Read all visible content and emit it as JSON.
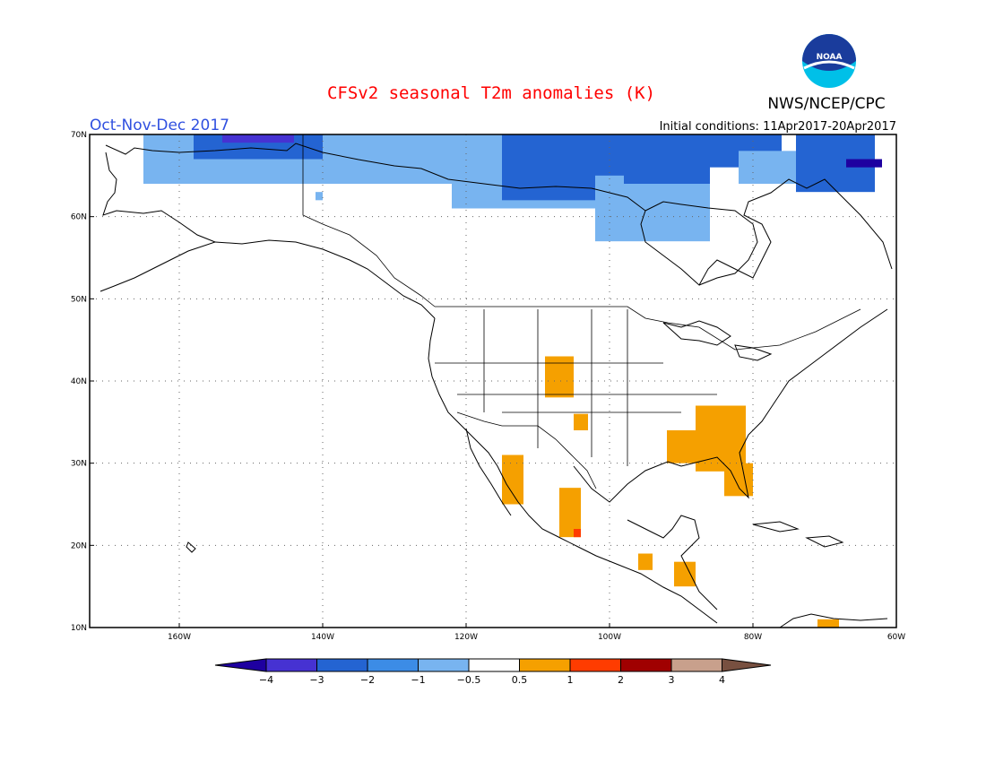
{
  "header": {
    "title": "CFSv2 seasonal T2m anomalies (K)",
    "season": "Oct-Nov-Dec 2017",
    "initial_conditions": "Initial conditions: 11Apr2017-20Apr2017",
    "agency": "NWS/NCEP/CPC",
    "logo_text": "NOAA"
  },
  "colors": {
    "title": "#ff0000",
    "season": "#3050e0",
    "text": "#000000"
  },
  "map": {
    "lon_min": -172.5,
    "lon_max": -60,
    "lat_min": 10,
    "lat_max": 70,
    "grid": "dotted",
    "lat_ticks": [
      {
        "value": 70,
        "label": "70N"
      },
      {
        "value": 60,
        "label": "60N"
      },
      {
        "value": 50,
        "label": "50N"
      },
      {
        "value": 40,
        "label": "40N"
      },
      {
        "value": 30,
        "label": "30N"
      },
      {
        "value": 20,
        "label": "20N"
      },
      {
        "value": 10,
        "label": "10N"
      }
    ],
    "lon_ticks": [
      {
        "value": -160,
        "label": "160W"
      },
      {
        "value": -140,
        "label": "140W"
      },
      {
        "value": -120,
        "label": "120W"
      },
      {
        "value": -100,
        "label": "100W"
      },
      {
        "value": -80,
        "label": "80W"
      },
      {
        "value": -60,
        "label": "60W"
      }
    ]
  },
  "colorbar": {
    "colors": [
      "#1e00a0",
      "#4632d2",
      "#2464d2",
      "#3c8ce6",
      "#78b4f0",
      "#ffffff",
      "#f5a000",
      "#ff3c00",
      "#a00000",
      "#c8a08c",
      "#785040"
    ],
    "labels": [
      "−4",
      "−3",
      "−2",
      "−1",
      "−0.5",
      "0.5",
      "1",
      "2",
      "3",
      "4"
    ]
  },
  "chart_data": {
    "type": "heatmap",
    "title": "CFSv2 seasonal T2m anomalies (K)",
    "regions": [
      {
        "lon": [
          -165,
          -96
        ],
        "lat": [
          64,
          70
        ],
        "anomaly": -1
      },
      {
        "lon": [
          -158,
          -140
        ],
        "lat": [
          67,
          70
        ],
        "anomaly": -2
      },
      {
        "lon": [
          -154,
          -144
        ],
        "lat": [
          69,
          70
        ],
        "anomaly": -3
      },
      {
        "lon": [
          -140,
          -122
        ],
        "lat": [
          67,
          70
        ],
        "anomaly": -1
      },
      {
        "lon": [
          -122,
          -96
        ],
        "lat": [
          61,
          70
        ],
        "anomaly": -1
      },
      {
        "lon": [
          -115,
          -94
        ],
        "lat": [
          62,
          70
        ],
        "anomaly": -2
      },
      {
        "lon": [
          -102,
          -86
        ],
        "lat": [
          57,
          65
        ],
        "anomaly": -1
      },
      {
        "lon": [
          -98,
          -86
        ],
        "lat": [
          64,
          70
        ],
        "anomaly": -2
      },
      {
        "lon": [
          -90,
          -76
        ],
        "lat": [
          66,
          70
        ],
        "anomaly": -2
      },
      {
        "lon": [
          -82,
          -74
        ],
        "lat": [
          64,
          68
        ],
        "anomaly": -1
      },
      {
        "lon": [
          -74,
          -63
        ],
        "lat": [
          63,
          70
        ],
        "anomaly": -2
      },
      {
        "lon": [
          -67,
          -62
        ],
        "lat": [
          66,
          67
        ],
        "anomaly": -4
      },
      {
        "lon": [
          -141,
          -140
        ],
        "lat": [
          62,
          63
        ],
        "anomaly": -1
      },
      {
        "lon": [
          -109,
          -105
        ],
        "lat": [
          38,
          43
        ],
        "anomaly": 0.5
      },
      {
        "lon": [
          -105,
          -103
        ],
        "lat": [
          34,
          36
        ],
        "anomaly": 0.5
      },
      {
        "lon": [
          -88,
          -81
        ],
        "lat": [
          29,
          37
        ],
        "anomaly": 0.5
      },
      {
        "lon": [
          -92,
          -88
        ],
        "lat": [
          30,
          34
        ],
        "anomaly": 0.5
      },
      {
        "lon": [
          -84,
          -80
        ],
        "lat": [
          26,
          30
        ],
        "anomaly": 0.5
      },
      {
        "lon": [
          -115,
          -112
        ],
        "lat": [
          25,
          31
        ],
        "anomaly": 0.5
      },
      {
        "lon": [
          -107,
          -104
        ],
        "lat": [
          21,
          27
        ],
        "anomaly": 0.5
      },
      {
        "lon": [
          -105,
          -104
        ],
        "lat": [
          21,
          22
        ],
        "anomaly": 1
      },
      {
        "lon": [
          -91,
          -88
        ],
        "lat": [
          15,
          18
        ],
        "anomaly": 0.5
      },
      {
        "lon": [
          -96,
          -94
        ],
        "lat": [
          17,
          19
        ],
        "anomaly": 0.5
      },
      {
        "lon": [
          -71,
          -68
        ],
        "lat": [
          10,
          11
        ],
        "anomaly": 0.5
      }
    ]
  }
}
